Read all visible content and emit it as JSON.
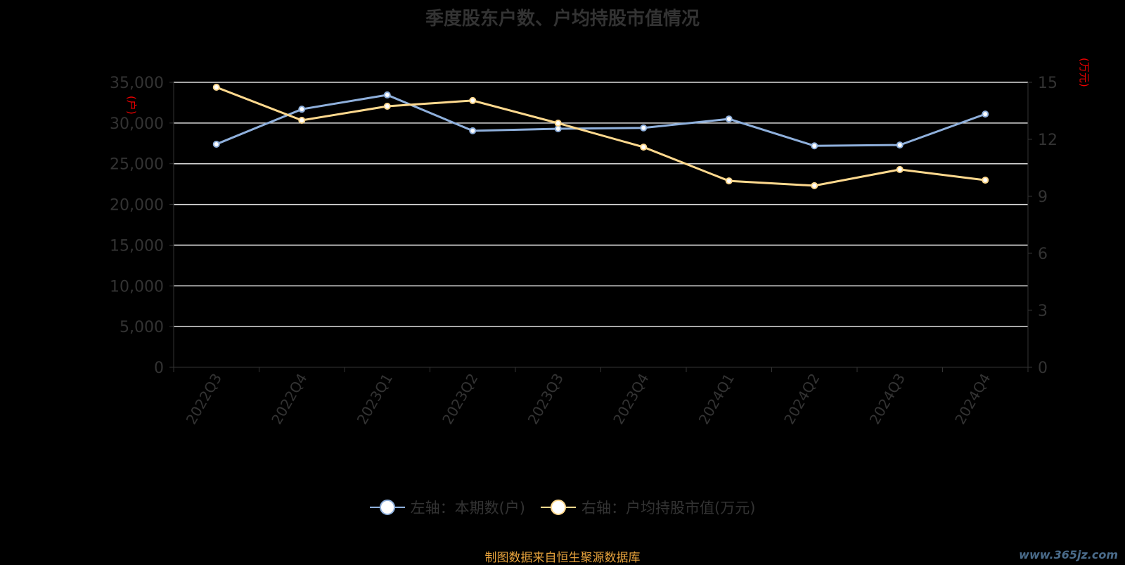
{
  "chart_data": {
    "type": "line",
    "title": "季度股东户数、户均持股市值情况",
    "categories": [
      "2022Q3",
      "2022Q4",
      "2023Q1",
      "2023Q2",
      "2023Q3",
      "2023Q4",
      "2024Q1",
      "2024Q2",
      "2024Q3",
      "2024Q4"
    ],
    "series": [
      {
        "name": "左轴：本期数(户)",
        "axis": "left",
        "color": "#8fb0dc",
        "values": [
          27400,
          31700,
          33450,
          29050,
          29300,
          29400,
          30500,
          27200,
          27300,
          31100
        ]
      },
      {
        "name": "右轴：户均持股市值(万元)",
        "axis": "right",
        "color": "#ffd98e",
        "values": [
          14.74,
          13.0,
          13.74,
          14.04,
          12.85,
          11.59,
          9.81,
          9.56,
          10.41,
          9.85
        ]
      }
    ],
    "left_axis": {
      "name": "(户)",
      "ylim": [
        0,
        35000
      ],
      "ticks": [
        "0",
        "5,000",
        "10,000",
        "15,000",
        "20,000",
        "25,000",
        "30,000",
        "35,000"
      ]
    },
    "right_axis": {
      "name": "(万元)",
      "ylim": [
        0,
        15
      ],
      "ticks": [
        "0",
        "3",
        "6",
        "9",
        "12",
        "15"
      ]
    },
    "grid": true,
    "legend_position": "bottom"
  },
  "footer": "制图数据来自恒生聚源数据库",
  "watermark": "www.365jz.com"
}
